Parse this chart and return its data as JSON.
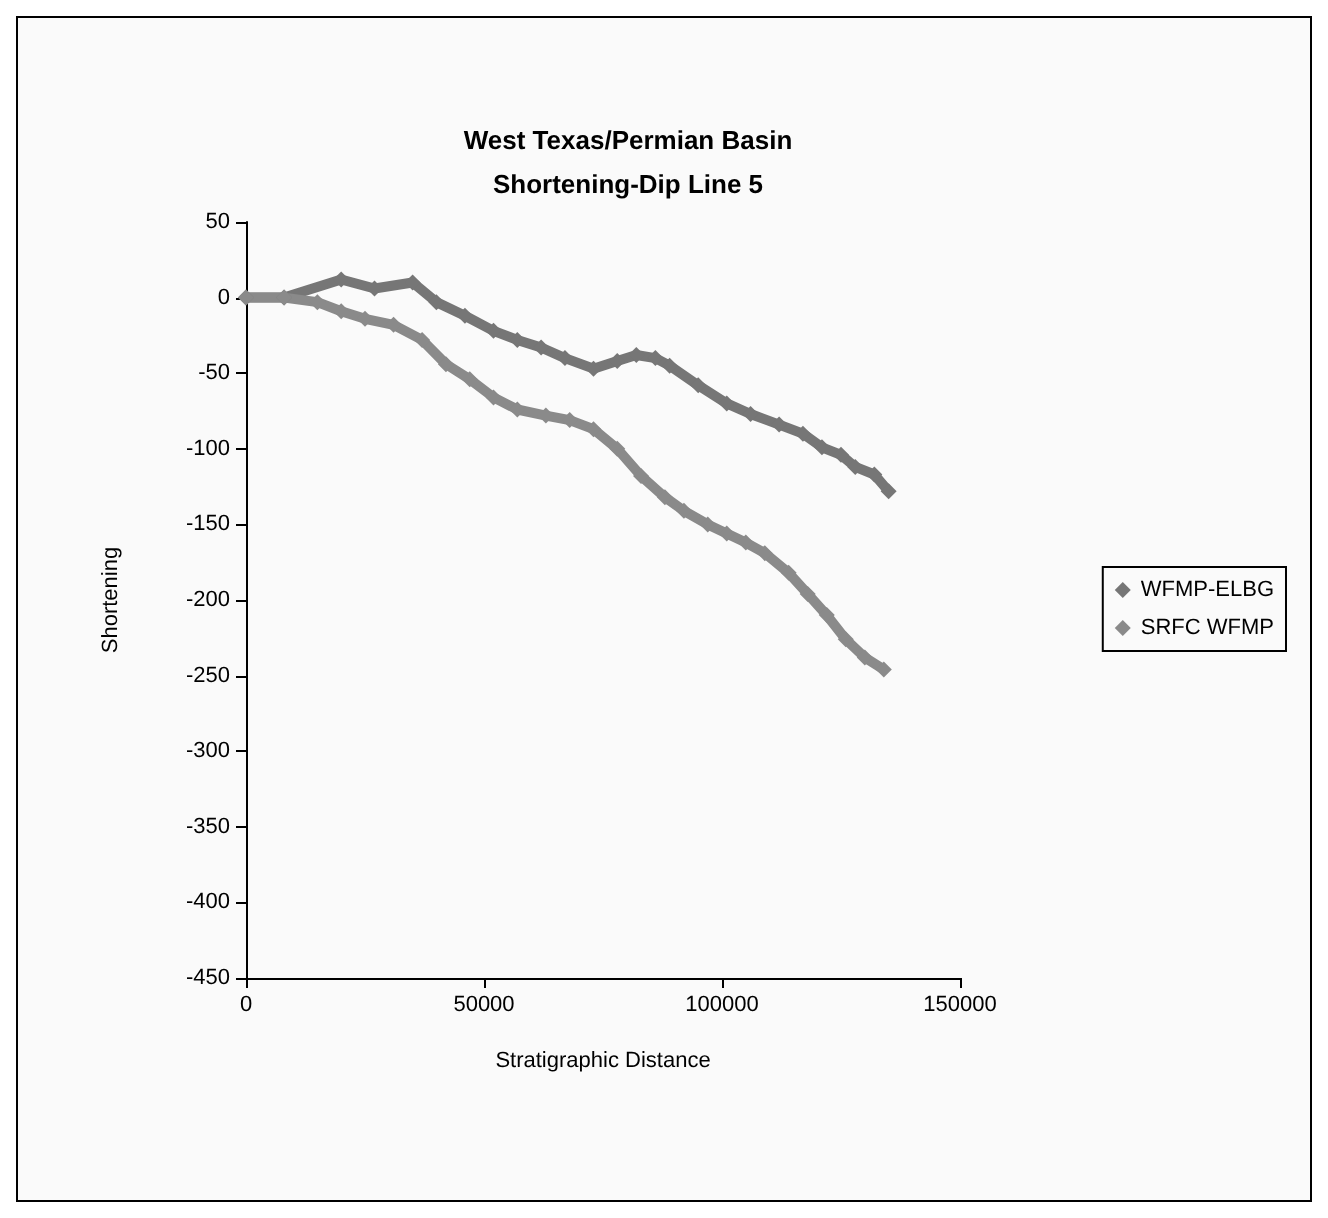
{
  "chart_data": {
    "type": "line",
    "title": "West Texas/Permian Basin\nShortening-Dip Line 5",
    "xlabel": "Stratigraphic Distance",
    "ylabel": "Shortening",
    "xlim": [
      0,
      150000
    ],
    "xticks": [
      0,
      50000,
      100000,
      150000
    ],
    "ylim": [
      -450,
      50
    ],
    "yticks": [
      50,
      0,
      -50,
      -100,
      -150,
      -200,
      -250,
      -300,
      -350,
      -400,
      -450
    ],
    "grid": false,
    "legend": "right",
    "marker": "diamond",
    "series": [
      {
        "name": "WFMP-ELBG",
        "color": "#767676",
        "x": [
          0,
          8000,
          20000,
          27000,
          35000,
          40000,
          46000,
          52000,
          57000,
          62000,
          67000,
          73000,
          78000,
          82000,
          86000,
          89000,
          95000,
          101000,
          106000,
          112000,
          117000,
          121000,
          125000,
          128000,
          132000,
          135000
        ],
        "values": [
          0,
          0,
          12,
          6,
          10,
          -3,
          -12,
          -22,
          -28,
          -33,
          -40,
          -47,
          -42,
          -38,
          -40,
          -45,
          -58,
          -70,
          -77,
          -84,
          -90,
          -99,
          -104,
          -112,
          -117,
          -128
        ]
      },
      {
        "name": "SRFC WFMP",
        "color": "#8a8a8a",
        "x": [
          0,
          8000,
          15000,
          20000,
          25000,
          31000,
          37000,
          42000,
          47000,
          52000,
          57000,
          63000,
          68000,
          73000,
          78000,
          83000,
          88000,
          92000,
          97000,
          101000,
          105000,
          109000,
          114000,
          118000,
          122000,
          126000,
          130000,
          134000
        ],
        "values": [
          0,
          0,
          -3,
          -9,
          -14,
          -18,
          -28,
          -44,
          -54,
          -66,
          -74,
          -78,
          -81,
          -87,
          -100,
          -118,
          -132,
          -141,
          -150,
          -156,
          -162,
          -169,
          -182,
          -196,
          -210,
          -226,
          -238,
          -246
        ]
      }
    ]
  }
}
